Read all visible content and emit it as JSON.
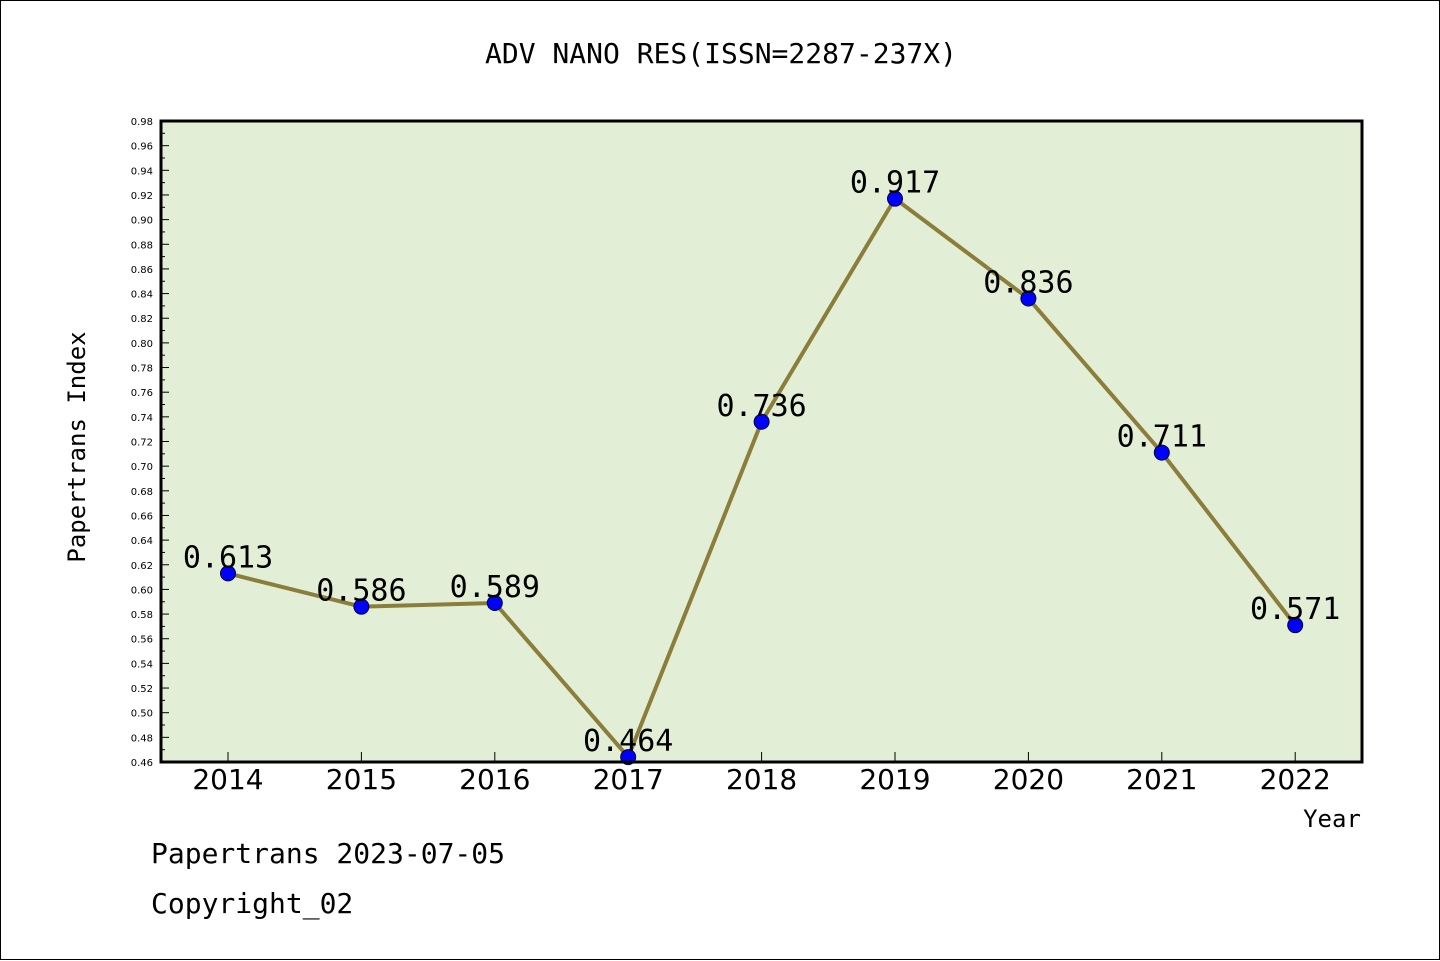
{
  "chart_data": {
    "type": "line",
    "title": "ADV NANO RES(ISSN=2287-237X)",
    "xlabel": "Year",
    "ylabel": "Papertrans Index",
    "categories": [
      "2014",
      "2015",
      "2016",
      "2017",
      "2018",
      "2019",
      "2020",
      "2021",
      "2022"
    ],
    "series": [
      {
        "values": [
          0.613,
          0.586,
          0.589,
          0.464,
          0.736,
          0.917,
          0.836,
          0.711,
          0.571
        ],
        "labels": [
          "0.613",
          "0.586",
          "0.589",
          "0.464",
          "0.736",
          "0.917",
          "0.836",
          "0.711",
          "0.571"
        ]
      }
    ],
    "ylim": [
      0.46,
      0.98
    ],
    "yticks": [
      "0.46",
      "0.48",
      "0.50",
      "0.52",
      "0.54",
      "0.56",
      "0.58",
      "0.60",
      "0.62",
      "0.64",
      "0.66",
      "0.68",
      "0.70",
      "0.72",
      "0.74",
      "0.76",
      "0.78",
      "0.80",
      "0.82",
      "0.84",
      "0.86",
      "0.88",
      "0.90",
      "0.92",
      "0.94",
      "0.96",
      "0.98"
    ],
    "grid": false,
    "legend": "none",
    "colors": {
      "plot_background": "#e2efd6",
      "line": "#8b7d3a",
      "marker": "#0000ff",
      "axis": "#000000"
    }
  },
  "footer": {
    "date_line": "Papertrans 2023-07-05",
    "copyright_line": "Copyright_02"
  }
}
